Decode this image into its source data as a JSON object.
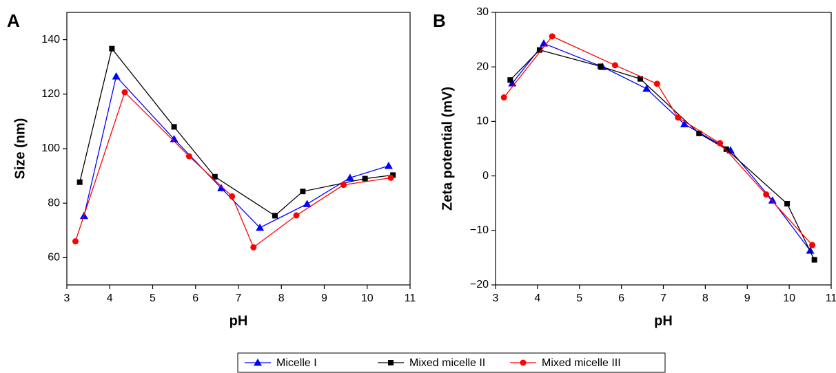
{
  "chart_data": [
    {
      "type": "line",
      "panel": "A",
      "xlabel": "pH",
      "ylabel": "Size (nm)",
      "xlim": [
        3,
        11
      ],
      "ylim": [
        50,
        150
      ],
      "xticks": [
        3,
        4,
        5,
        6,
        7,
        8,
        9,
        10,
        11
      ],
      "yticks": [
        60,
        80,
        100,
        120,
        140
      ],
      "series": [
        {
          "name": "Micelle I",
          "color": "#0000ff",
          "marker": "triangle",
          "x": [
            3.4,
            4.15,
            5.5,
            6.6,
            7.5,
            8.6,
            9.6,
            10.5
          ],
          "values": [
            75.3,
            126.5,
            103.5,
            85.5,
            71,
            79.7,
            89.3,
            93.7
          ]
        },
        {
          "name": "Mixed micelle II",
          "color": "#000000",
          "marker": "square",
          "x": [
            3.3,
            4.05,
            5.5,
            6.45,
            7.85,
            8.5,
            9.95,
            10.6
          ],
          "values": [
            87.7,
            136.7,
            108,
            89.7,
            75.4,
            84.3,
            89,
            90.3
          ]
        },
        {
          "name": "Mixed micelle III",
          "color": "#ff0000",
          "marker": "circle",
          "x": [
            3.2,
            4.35,
            5.85,
            6.85,
            7.35,
            8.35,
            9.45,
            10.55
          ],
          "values": [
            66,
            120.7,
            97.2,
            82.5,
            63.8,
            75.5,
            86.7,
            89.3
          ]
        }
      ]
    },
    {
      "type": "line",
      "panel": "B",
      "xlabel": "pH",
      "ylabel": "Zeta potential (mV)",
      "xlim": [
        3,
        11
      ],
      "ylim": [
        -20,
        30
      ],
      "xticks": [
        3,
        4,
        5,
        6,
        7,
        8,
        9,
        10,
        11
      ],
      "yticks": [
        {
          "value": -20,
          "label": "−20"
        },
        {
          "value": -10,
          "label": "−10"
        },
        0,
        10,
        20,
        30
      ],
      "series": [
        {
          "name": "Micelle I",
          "color": "#0000ff",
          "marker": "triangle",
          "x": [
            3.4,
            4.15,
            5.55,
            6.6,
            7.5,
            8.6,
            9.6,
            10.5
          ],
          "values": [
            17,
            24.3,
            20,
            16,
            9.5,
            4.7,
            -4.5,
            -13.7
          ]
        },
        {
          "name": "Mixed micelle II",
          "color": "#000000",
          "marker": "square",
          "x": [
            3.35,
            4.05,
            5.5,
            6.45,
            7.85,
            8.5,
            9.95,
            10.6
          ],
          "values": [
            17.6,
            23.1,
            20.1,
            17.8,
            7.8,
            4.9,
            -5.1,
            -15.4
          ]
        },
        {
          "name": "Mixed micelle III",
          "color": "#ff0000",
          "marker": "circle",
          "x": [
            3.2,
            4.35,
            5.85,
            6.85,
            7.35,
            8.35,
            9.45,
            10.55
          ],
          "values": [
            14.4,
            25.6,
            20.3,
            16.9,
            10.7,
            6,
            -3.4,
            -12.7
          ]
        }
      ]
    }
  ]
}
